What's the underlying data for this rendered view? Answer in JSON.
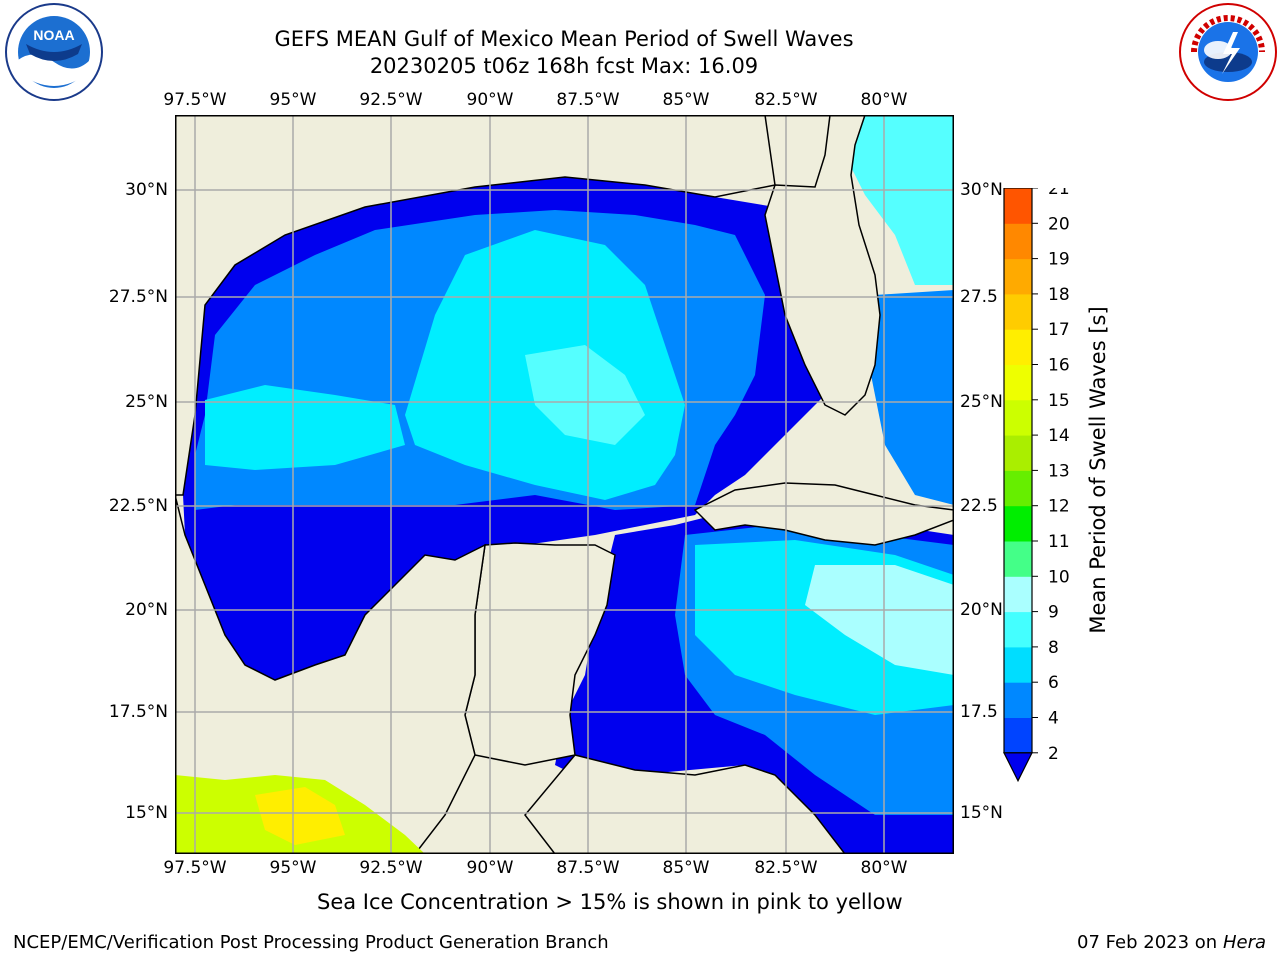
{
  "title_line1": "GEFS MEAN Gulf of Mexico Mean Period of Swell Waves",
  "title_line2": "20230205 t06z 168h fcst   Max: 16.09",
  "lon_ticks": [
    "97.5°W",
    "95°W",
    "92.5°W",
    "90°W",
    "87.5°W",
    "85°W",
    "82.5°W",
    "80°W"
  ],
  "lat_ticks_left": [
    "30°N",
    "27.5°N",
    "25°N",
    "22.5°N",
    "20°N",
    "17.5°N",
    "15°N"
  ],
  "lat_ticks_right": [
    "30°N",
    "27.5",
    "25°N",
    "22.5",
    "20°N",
    "17.5",
    "15°N"
  ],
  "colorbar": {
    "label": "Mean Period of Swell Waves [s]",
    "ticks": [
      "2",
      "4",
      "6",
      "8",
      "9",
      "10",
      "11",
      "12",
      "13",
      "14",
      "15",
      "16",
      "17",
      "18",
      "19",
      "20",
      "21"
    ],
    "colors": [
      "#0044ff",
      "#0088ff",
      "#00ddff",
      "#44ffff",
      "#aaffff",
      "#44ff88",
      "#00ee00",
      "#66ee00",
      "#aaee00",
      "#ccff00",
      "#eeff00",
      "#ffee00",
      "#ffcc00",
      "#ffaa00",
      "#ff8800",
      "#ff5500",
      "#ff2200",
      "#ff0000"
    ],
    "extend": "min"
  },
  "note": "Sea Ice Concentration > 15% is shown in pink to yellow",
  "footer_left": "NCEP/EMC/Verification Post Processing Product Generation Branch",
  "footer_date": "07 Feb 2023 on",
  "footer_host": "Hera",
  "logos": {
    "left": "NOAA",
    "right": "NATIONAL WEATHER SERVICE"
  },
  "map": {
    "extent": {
      "lon": [
        -98.5,
        -78.5
      ],
      "lat": [
        14,
        32
      ]
    },
    "land_color": "#efeedc",
    "swell_colors": {
      "dark_blue": "#0000ee",
      "blue": "#0044ff",
      "mid_blue": "#0088ff",
      "cyan": "#00eeff",
      "light_cyan": "#55ffff",
      "pale_cyan": "#aaffff"
    },
    "grid": true
  }
}
